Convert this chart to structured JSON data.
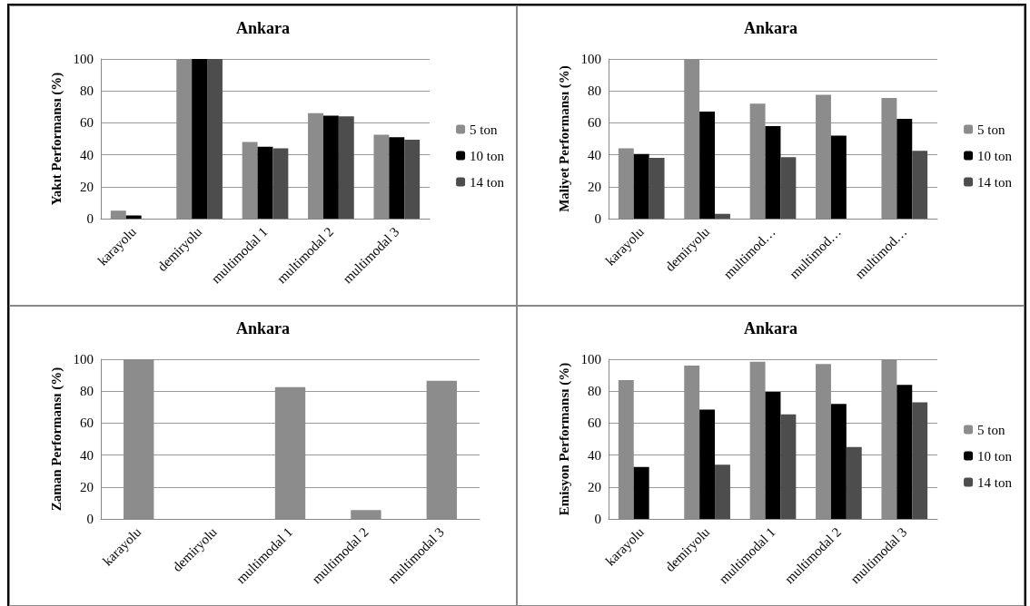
{
  "chart_data": [
    {
      "type": "bar",
      "title": "Ankara",
      "ylabel": "Yakıt Performansı (%)",
      "categories": [
        "karayolu",
        "demiryolu",
        "multimodal 1",
        "multimodal 2",
        "multimodal 3"
      ],
      "ylim": [
        0,
        100
      ],
      "yticks": [
        0,
        20,
        40,
        60,
        80,
        100
      ],
      "grid": "y",
      "legend": "right",
      "series": [
        {
          "name": "5 ton",
          "color": "#8c8c8c",
          "values": [
            5,
            100,
            48,
            66,
            52.5
          ]
        },
        {
          "name": "10 ton",
          "color": "#000000",
          "values": [
            2,
            100,
            45,
            64.5,
            51
          ]
        },
        {
          "name": "14 ton",
          "color": "#4d4d4d",
          "values": [
            0,
            100,
            44,
            64,
            49.5
          ]
        }
      ]
    },
    {
      "type": "bar",
      "title": "Ankara",
      "ylabel": "Maliyet Performansı (%)",
      "categories": [
        "karayolu",
        "demiryolu",
        "multimod…",
        "multimod…",
        "multimod…"
      ],
      "ylim": [
        0,
        100
      ],
      "yticks": [
        0,
        20,
        40,
        60,
        80,
        100
      ],
      "grid": "y",
      "legend": "right",
      "series": [
        {
          "name": "5 ton",
          "color": "#8c8c8c",
          "values": [
            44,
            100,
            72,
            77.5,
            75.5
          ]
        },
        {
          "name": "10 ton",
          "color": "#000000",
          "values": [
            40.5,
            67,
            58,
            52,
            62.5
          ]
        },
        {
          "name": "14 ton",
          "color": "#4d4d4d",
          "values": [
            38,
            3,
            38.5,
            0,
            42.5
          ]
        }
      ]
    },
    {
      "type": "bar",
      "title": "Ankara",
      "ylabel": "Zaman Performansı (%)",
      "categories": [
        "karayolu",
        "demiryolu",
        "multimodal 1",
        "multimodal 2",
        "multimodal 3"
      ],
      "ylim": [
        0,
        100
      ],
      "yticks": [
        0,
        20,
        40,
        60,
        80,
        100
      ],
      "grid": "y",
      "legend": false,
      "series": [
        {
          "color": "#8c8c8c",
          "values": [
            100,
            0,
            82.5,
            5.5,
            86.5
          ]
        }
      ]
    },
    {
      "type": "bar",
      "title": "Ankara",
      "ylabel": "Emisyon Performansı (%)",
      "categories": [
        "karayolu",
        "demiryolu",
        "multimodal 1",
        "multimodal 2",
        "multimodal 3"
      ],
      "ylim": [
        0,
        100
      ],
      "yticks": [
        0,
        20,
        40,
        60,
        80,
        100
      ],
      "grid": "y",
      "legend": "right",
      "series": [
        {
          "name": "5 ton",
          "color": "#8c8c8c",
          "values": [
            87,
            96,
            98.5,
            97,
            100
          ]
        },
        {
          "name": "10 ton",
          "color": "#000000",
          "values": [
            32.5,
            68.5,
            79.5,
            72,
            84
          ]
        },
        {
          "name": "14 ton",
          "color": "#4d4d4d",
          "values": [
            0,
            34,
            65.5,
            45,
            73
          ]
        }
      ]
    }
  ]
}
